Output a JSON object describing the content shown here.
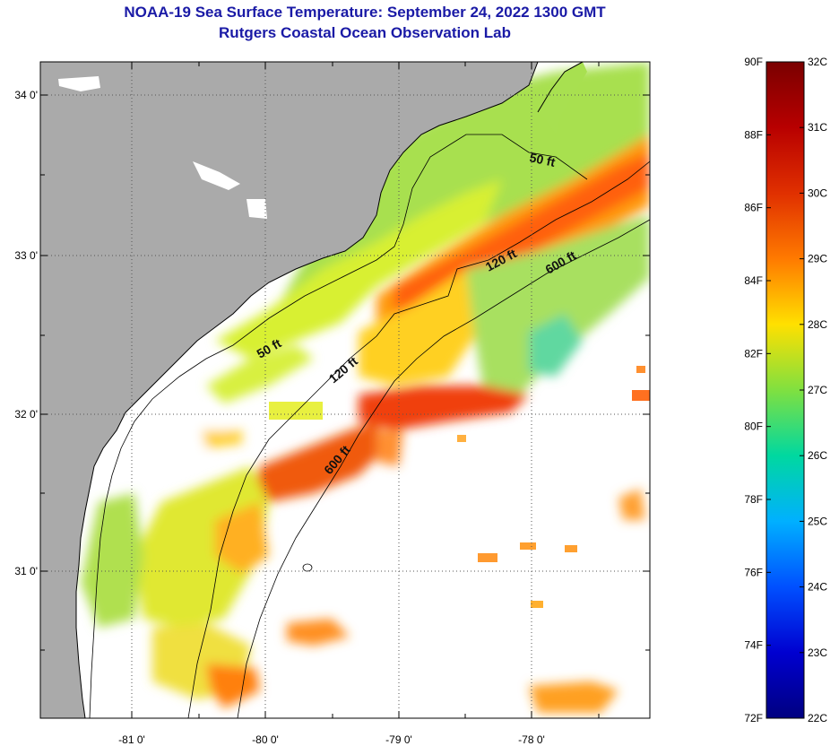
{
  "title": {
    "line1": "NOAA-19 Sea Surface Temperature:  September 24, 2022 1300 GMT",
    "line2": "Rutgers Coastal Ocean Observation Lab"
  },
  "map": {
    "lat_labels": [
      "34 0'",
      "33 0'",
      "32 0'",
      "31 0'"
    ],
    "lon_labels": [
      "-81 0'",
      "-80 0'",
      "-79 0'",
      "-78 0'"
    ],
    "contours": [
      {
        "label": "50 ft"
      },
      {
        "label": "50 ft"
      },
      {
        "label": "120 ft"
      },
      {
        "label": "120 ft"
      },
      {
        "label": "600 ft"
      },
      {
        "label": "600 ft"
      }
    ]
  },
  "colorbar": {
    "fahrenheit": [
      "90F",
      "88F",
      "86F",
      "84F",
      "82F",
      "80F",
      "78F",
      "76F",
      "74F",
      "72F"
    ],
    "celsius": [
      "32C",
      "31C",
      "30C",
      "29C",
      "28C",
      "27C",
      "26C",
      "25C",
      "24C",
      "23C",
      "22C"
    ],
    "colors": {
      "c32": "#7a0000",
      "c30": "#e03000",
      "c29": "#ff7a00",
      "c28": "#ffe000",
      "c27": "#80e040",
      "c26": "#00d8a0",
      "c25": "#00b0ff",
      "c24": "#0050ff",
      "c22": "#000080"
    }
  },
  "colors": {
    "land": "#aaaaaa",
    "no_data": "#ffffff",
    "title_text": "#1a1aa6"
  }
}
